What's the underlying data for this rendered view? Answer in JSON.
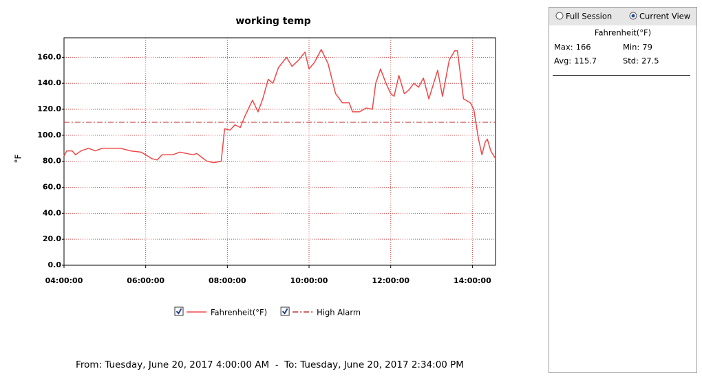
{
  "chart_data": {
    "type": "line",
    "title": "working temp",
    "ylabel": "°F",
    "x": [
      "04:00:00",
      "04:04:00",
      "04:12:00",
      "04:17:00",
      "04:25:00",
      "04:36:00",
      "04:46:00",
      "04:56:00",
      "05:08:00",
      "05:23:00",
      "05:38:00",
      "05:53:00",
      "06:00:00",
      "06:09:00",
      "06:17:00",
      "06:24:00",
      "06:40:00",
      "06:50:00",
      "07:00:00",
      "07:10:00",
      "07:15:00",
      "07:20:00",
      "07:30:00",
      "07:40:00",
      "07:51:00",
      "07:56:00",
      "08:04:00",
      "08:11:00",
      "08:19:00",
      "08:26:00",
      "08:37:00",
      "08:45:00",
      "08:52:00",
      "09:00:00",
      "09:07:00",
      "09:15:00",
      "09:27:00",
      "09:35:00",
      "09:45:00",
      "09:54:00",
      "10:00:00",
      "10:08:00",
      "10:18:00",
      "10:28:00",
      "10:39:00",
      "10:49:00",
      "10:59:00",
      "11:04:00",
      "11:14:00",
      "11:24:00",
      "11:33:00",
      "11:38:00",
      "11:45:00",
      "11:53:00",
      "12:00:00",
      "12:05:00",
      "12:12:00",
      "12:20:00",
      "12:27:00",
      "12:34:00",
      "12:41:00",
      "12:48:00",
      "12:56:00",
      "13:09:00",
      "13:16:00",
      "13:26:00",
      "13:34:00",
      "13:38:00",
      "13:47:00",
      "13:57:00",
      "14:02:00",
      "14:09:00",
      "14:14:00",
      "14:19:00",
      "14:22:00",
      "14:27:00",
      "14:34:00"
    ],
    "series": [
      {
        "name": "Fahrenheit(°F)",
        "color": "#f04848",
        "values": [
          84,
          88,
          88,
          85,
          88,
          90,
          88,
          90,
          90,
          90,
          88,
          87,
          85,
          82,
          81,
          85,
          85,
          87,
          86,
          85,
          86,
          84,
          80,
          79,
          80,
          105,
          104,
          108,
          106,
          115,
          127,
          118,
          128,
          143,
          140,
          152,
          160,
          153,
          158,
          164,
          151,
          156,
          166,
          155,
          132,
          125,
          125,
          118,
          118,
          121,
          120,
          140,
          151,
          140,
          132,
          130,
          146,
          132,
          135,
          140,
          137,
          144,
          128,
          150,
          130,
          158,
          165,
          165,
          128,
          125,
          120,
          97,
          85,
          95,
          97,
          88,
          82
        ]
      }
    ],
    "thresholds": [
      {
        "name": "High Alarm",
        "value": 110,
        "color": "#c03030"
      }
    ],
    "xlim": [
      "04:00:00",
      "14:34:00"
    ],
    "xticks": [
      "04:00:00",
      "06:00:00",
      "08:00:00",
      "10:00:00",
      "12:00:00",
      "14:00:00"
    ],
    "ylim": [
      0,
      175
    ],
    "yticks": [
      {
        "value": 0,
        "label": "0.0"
      },
      {
        "value": 20,
        "label": "20.0"
      },
      {
        "value": 40,
        "label": "40.0"
      },
      {
        "value": 60,
        "label": "60.0"
      },
      {
        "value": 80,
        "label": "80.0"
      },
      {
        "value": 100,
        "label": "100.0"
      },
      {
        "value": 120,
        "label": "120.0"
      },
      {
        "value": 140,
        "label": "140.0"
      },
      {
        "value": 160,
        "label": "160.0"
      }
    ],
    "grid": true,
    "footer": "From: Tuesday, June 20, 2017 4:00:00 AM  -  To: Tuesday, June 20, 2017 2:34:00 PM"
  },
  "panel": {
    "view_options": [
      "Full Session",
      "Current View"
    ],
    "selected": 1,
    "heading": "Fahrenheit(°F)",
    "stats": [
      {
        "label": "Max:",
        "value": 166
      },
      {
        "label": "Min:",
        "value": 79
      },
      {
        "label": "Avg:",
        "value": 115.7
      },
      {
        "label": "Std:",
        "value": 27.5
      }
    ]
  }
}
